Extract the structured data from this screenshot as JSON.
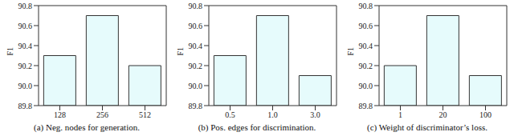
{
  "chart_data": [
    {
      "type": "bar",
      "title": "(a) Neg. nodes for generation.",
      "ylabel": "F1",
      "categories": [
        "128",
        "256",
        "512"
      ],
      "values": [
        90.3,
        90.7,
        90.2
      ],
      "color": "#e6fbfc",
      "ylim": [
        89.8,
        90.8
      ],
      "yticks": [
        89.8,
        {
          "value": 90,
          "label": "90.0"
        },
        90.2,
        90.4,
        90.6,
        90.8
      ],
      "grid": false
    },
    {
      "type": "bar",
      "title": "(b) Pos. edges for discrimination.",
      "ylabel": "F1",
      "categories": [
        "0.5",
        "1.0",
        "3.0"
      ],
      "values": [
        90.3,
        90.7,
        90.1
      ],
      "color": "#e6fbfc",
      "ylim": [
        89.8,
        90.8
      ],
      "yticks": [
        89.8,
        {
          "value": 90,
          "label": "90.0"
        },
        90.2,
        90.4,
        90.6,
        90.8
      ],
      "grid": false
    },
    {
      "type": "bar",
      "title": "(c) Weight of discriminator’s loss.",
      "ylabel": "F1",
      "categories": [
        "1",
        "20",
        "100"
      ],
      "values": [
        90.2,
        90.7,
        90.1
      ],
      "color": "#e6fbfc",
      "ylim": [
        89.8,
        90.8
      ],
      "yticks": [
        89.8,
        {
          "value": 90,
          "label": "90.0"
        },
        90.2,
        90.4,
        90.6,
        90.8
      ],
      "grid": false
    }
  ]
}
